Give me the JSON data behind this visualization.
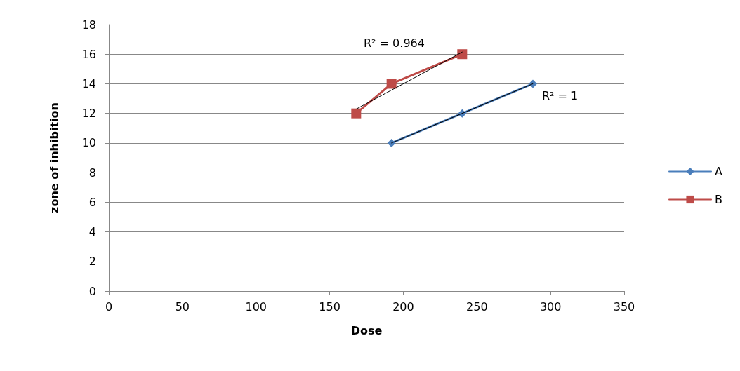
{
  "chart_data": {
    "type": "line",
    "xlabel": "Dose",
    "ylabel": "zone of inhibition",
    "xlim": [
      0,
      350
    ],
    "xticks": [
      0,
      50,
      100,
      150,
      200,
      250,
      300,
      350
    ],
    "ylim": [
      0,
      18
    ],
    "yticks": [
      0,
      2,
      4,
      6,
      8,
      10,
      12,
      14,
      16,
      18
    ],
    "grid": "y",
    "legend": "right",
    "series": [
      {
        "name": "A",
        "color": "#4a7ebb",
        "marker": "diamond",
        "x": [
          192,
          240,
          288
        ],
        "values": [
          10,
          12,
          14
        ]
      },
      {
        "name": "B",
        "color": "#be4b48",
        "marker": "square",
        "x": [
          168,
          192,
          240
        ],
        "values": [
          12,
          14,
          16
        ]
      },
      {
        "color": "#000000",
        "marker": "none",
        "x": [
          192,
          288
        ],
        "values": [
          10,
          14
        ]
      },
      {
        "color": "#000000",
        "marker": "none",
        "x": [
          168,
          240
        ],
        "values": [
          12.29,
          16.14
        ]
      }
    ],
    "annotations": [
      "R² = 0.964",
      "R² = 1"
    ]
  }
}
